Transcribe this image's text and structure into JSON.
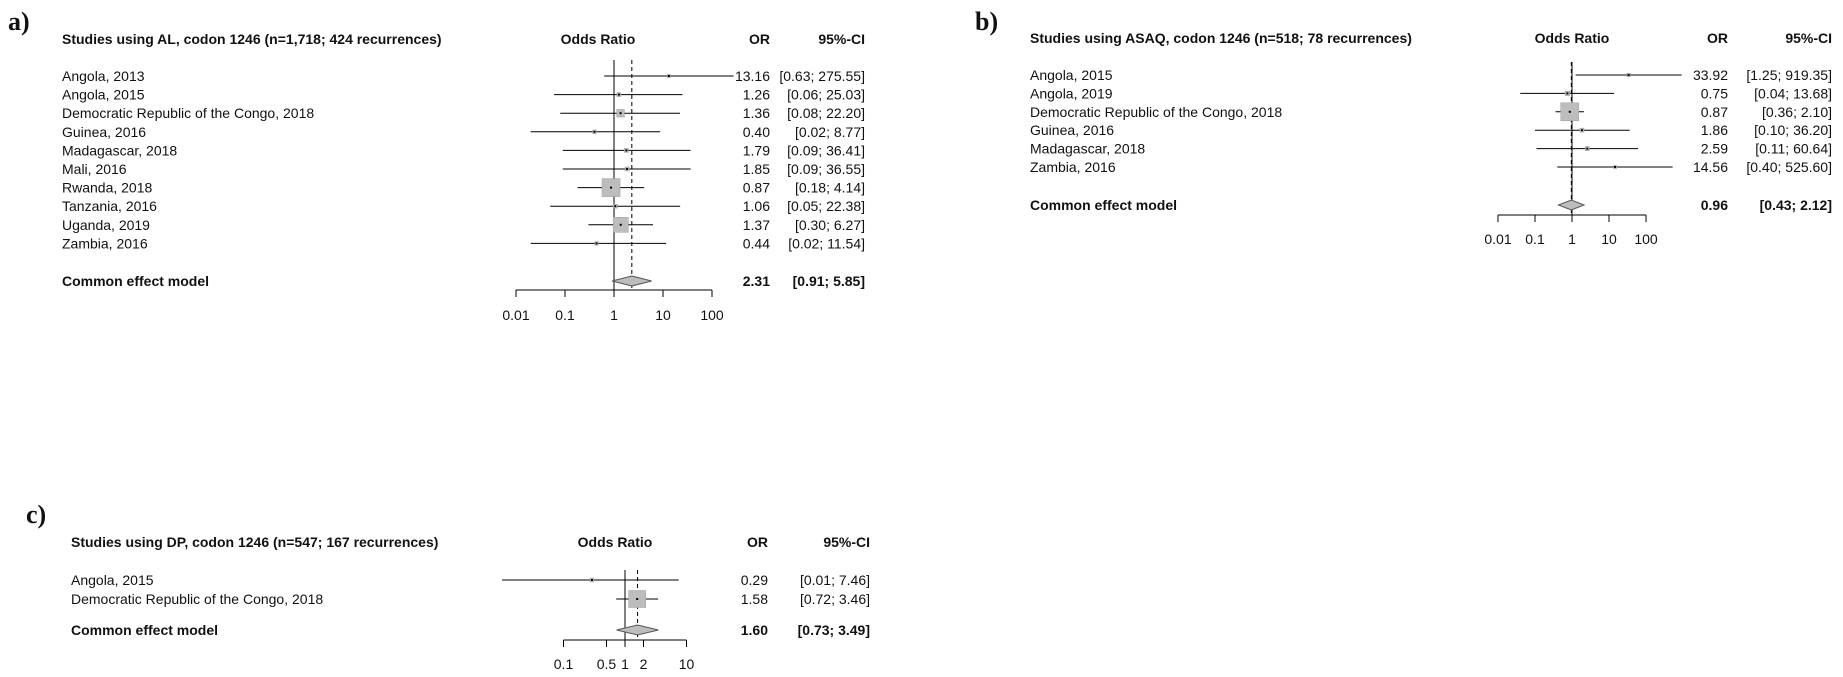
{
  "colors": {
    "text": "#111111",
    "axis": "#000000",
    "box": "#bdbdbd",
    "box_stroke": "#9e9e9e",
    "diamond": "#bdbdbd",
    "dashed": "#000000"
  },
  "panels": [
    {
      "label": "a)",
      "title": "Studies using AL, codon 1246 (n=1,718; 424 recurrences)",
      "col_plot": "Odds Ratio",
      "col_or": "OR",
      "col_ci": "95%-CI"
    },
    {
      "label": "b)",
      "title": "Studies using ASAQ, codon 1246 (n=518; 78 recurrences)",
      "col_plot": "Odds Ratio",
      "col_or": "OR",
      "col_ci": "95%-CI"
    },
    {
      "label": "c)",
      "title": "Studies using DP, codon 1246 (n=547; 167 recurrences)",
      "col_plot": "Odds Ratio",
      "col_or": "OR",
      "col_ci": "95%-CI"
    }
  ],
  "chart_data": [
    {
      "type": "forest",
      "x_scale": "log",
      "xlim": [
        0.01,
        100
      ],
      "ticks": [
        0.01,
        0.1,
        1,
        10,
        100
      ],
      "tick_labels": [
        "0.01",
        "0.1",
        "1",
        "10",
        "100"
      ],
      "studies": [
        {
          "name": "Angola, 2013",
          "or": 13.16,
          "lo": 0.63,
          "hi": 275.55,
          "or_text": "13.16",
          "ci_text": "[0.63; 275.55]",
          "weight": 0.03
        },
        {
          "name": "Angola, 2015",
          "or": 1.26,
          "lo": 0.06,
          "hi": 25.03,
          "or_text": "1.26",
          "ci_text": "[0.06;  25.03]",
          "weight": 0.05
        },
        {
          "name": "Democratic Republic of the Congo, 2018",
          "or": 1.36,
          "lo": 0.08,
          "hi": 22.2,
          "or_text": "1.36",
          "ci_text": "[0.08;  22.20]",
          "weight": 0.18
        },
        {
          "name": "Guinea, 2016",
          "or": 0.4,
          "lo": 0.02,
          "hi": 8.77,
          "or_text": "0.40",
          "ci_text": "[0.02;   8.77]",
          "weight": 0.04
        },
        {
          "name": "Madagascar, 2018",
          "or": 1.79,
          "lo": 0.09,
          "hi": 36.41,
          "or_text": "1.79",
          "ci_text": "[0.09;  36.41]",
          "weight": 0.05
        },
        {
          "name": "Mali, 2016",
          "or": 1.85,
          "lo": 0.09,
          "hi": 36.55,
          "or_text": "1.85",
          "ci_text": "[0.09;  36.55]",
          "weight": 0.05
        },
        {
          "name": "Rwanda, 2018",
          "or": 0.87,
          "lo": 0.18,
          "hi": 4.14,
          "or_text": "0.87",
          "ci_text": "[0.18;   4.14]",
          "weight": 1.0
        },
        {
          "name": "Tanzania, 2016",
          "or": 1.06,
          "lo": 0.05,
          "hi": 22.38,
          "or_text": "1.06",
          "ci_text": "[0.05;  22.38]",
          "weight": 0.05
        },
        {
          "name": "Uganda, 2019",
          "or": 1.37,
          "lo": 0.3,
          "hi": 6.27,
          "or_text": "1.37",
          "ci_text": "[0.30;   6.27]",
          "weight": 0.7
        },
        {
          "name": "Zambia, 2016",
          "or": 0.44,
          "lo": 0.02,
          "hi": 11.54,
          "or_text": "0.44",
          "ci_text": "[0.02;  11.54]",
          "weight": 0.04
        }
      ],
      "pooled": {
        "name": "Common effect model",
        "or": 2.31,
        "lo": 0.91,
        "hi": 5.85,
        "or_text": "2.31",
        "ci_text": "[0.91;   5.85]"
      }
    },
    {
      "type": "forest",
      "x_scale": "log",
      "xlim": [
        0.01,
        100
      ],
      "ticks": [
        0.01,
        0.1,
        1,
        10,
        100
      ],
      "tick_labels": [
        "0.01",
        "0.1",
        "1",
        "10",
        "100"
      ],
      "studies": [
        {
          "name": "Angola, 2015",
          "or": 33.92,
          "lo": 1.25,
          "hi": 919.35,
          "or_text": "33.92",
          "ci_text": "[1.25; 919.35]",
          "weight": 0.04
        },
        {
          "name": "Angola, 2019",
          "or": 0.75,
          "lo": 0.04,
          "hi": 13.68,
          "or_text": "0.75",
          "ci_text": "[0.04;  13.68]",
          "weight": 0.06
        },
        {
          "name": "Democratic Republic of the Congo, 2018",
          "or": 0.87,
          "lo": 0.36,
          "hi": 2.1,
          "or_text": "0.87",
          "ci_text": "[0.36;   2.10]",
          "weight": 1.0
        },
        {
          "name": "Guinea, 2016",
          "or": 1.86,
          "lo": 0.1,
          "hi": 36.2,
          "or_text": "1.86",
          "ci_text": "[0.10;  36.20]",
          "weight": 0.05
        },
        {
          "name": "Madagascar, 2018",
          "or": 2.59,
          "lo": 0.11,
          "hi": 60.64,
          "or_text": "2.59",
          "ci_text": "[0.11;  60.64]",
          "weight": 0.05
        },
        {
          "name": "Zambia, 2016",
          "or": 14.56,
          "lo": 0.4,
          "hi": 525.6,
          "or_text": "14.56",
          "ci_text": "[0.40; 525.60]",
          "weight": 0.03
        }
      ],
      "pooled": {
        "name": "Common effect model",
        "or": 0.96,
        "lo": 0.43,
        "hi": 2.12,
        "or_text": "0.96",
        "ci_text": "[0.43;   2.12]"
      }
    },
    {
      "type": "forest",
      "x_scale": "log",
      "xlim": [
        0.05,
        20
      ],
      "ticks": [
        0.1,
        0.5,
        1,
        2,
        10
      ],
      "tick_labels": [
        "0.1",
        "0.5",
        "1",
        "2",
        "10"
      ],
      "studies": [
        {
          "name": "Angola, 2015",
          "or": 0.29,
          "lo": 0.01,
          "hi": 7.46,
          "or_text": "0.29",
          "ci_text": "[0.01; 7.46]",
          "weight": 0.05
        },
        {
          "name": "Democratic Republic of the Congo, 2018",
          "or": 1.58,
          "lo": 0.72,
          "hi": 3.46,
          "or_text": "1.58",
          "ci_text": "[0.72; 3.46]",
          "weight": 1.0
        }
      ],
      "pooled": {
        "name": "Common effect model",
        "or": 1.6,
        "lo": 0.73,
        "hi": 3.49,
        "or_text": "1.60",
        "ci_text": "[0.73; 3.49]"
      }
    }
  ]
}
